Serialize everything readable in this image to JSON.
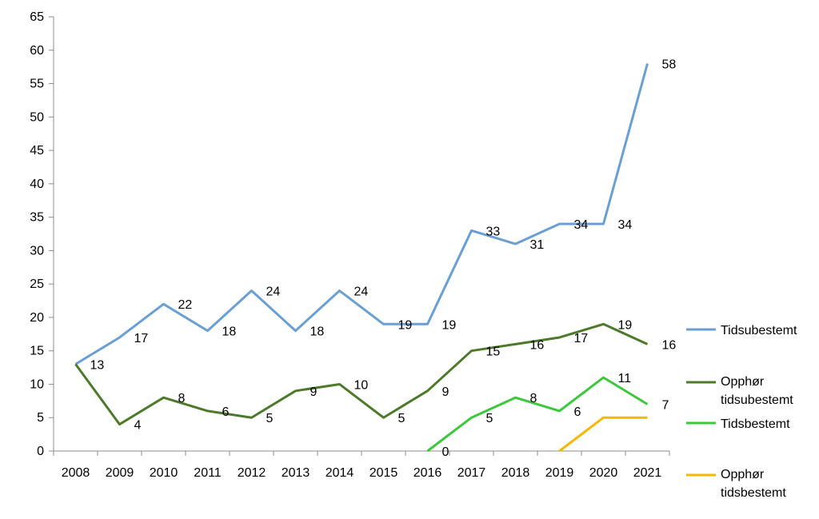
{
  "chart_data": {
    "type": "line",
    "title": "",
    "xlabel": "",
    "ylabel": "",
    "ylim": [
      0,
      65
    ],
    "y_ticks": [
      0,
      5,
      10,
      15,
      20,
      25,
      30,
      35,
      40,
      45,
      50,
      55,
      60,
      65
    ],
    "grid": false,
    "legend_position": "right",
    "categories": [
      "2008",
      "2009",
      "2010",
      "2011",
      "2012",
      "2013",
      "2014",
      "2015",
      "2016",
      "2017",
      "2018",
      "2019",
      "2020",
      "2021"
    ],
    "series": [
      {
        "name": "Tidsubestemt",
        "color": "#6a9fd4",
        "values": [
          13,
          17,
          22,
          18,
          24,
          18,
          24,
          19,
          19,
          33,
          31,
          34,
          34,
          58
        ],
        "labels": [
          "13",
          "17",
          "22",
          "18",
          "24",
          "18",
          "24",
          "19",
          "19",
          "33",
          "31",
          "34",
          "34",
          "58"
        ]
      },
      {
        "name": "Opphør tidsubestemt",
        "legend_lines": [
          "Opphør",
          "tidsubestemt"
        ],
        "color": "#4d7a2a",
        "values": [
          13,
          4,
          8,
          6,
          5,
          9,
          10,
          5,
          9,
          15,
          16,
          17,
          19,
          16
        ],
        "labels": [
          null,
          "4",
          "8",
          "6",
          "5",
          "9",
          "10",
          "5",
          "9",
          "15",
          "16",
          "17",
          "19",
          "16"
        ]
      },
      {
        "name": "Tidsbestemt",
        "color": "#3cc83c",
        "values": [
          null,
          null,
          null,
          null,
          null,
          null,
          null,
          null,
          0,
          5,
          8,
          6,
          11,
          7
        ],
        "labels": [
          null,
          null,
          null,
          null,
          null,
          null,
          null,
          null,
          "0",
          "5",
          "8",
          "6",
          "11",
          "7"
        ]
      },
      {
        "name": "Opphør tidsbestemt",
        "legend_lines": [
          "Opphør",
          "tidsbestemt"
        ],
        "color": "#f5b800",
        "values": [
          null,
          null,
          null,
          null,
          null,
          null,
          null,
          null,
          null,
          null,
          null,
          0,
          5,
          5
        ],
        "labels": [
          null,
          null,
          null,
          null,
          null,
          null,
          null,
          null,
          null,
          null,
          null,
          null,
          null,
          null
        ]
      }
    ]
  }
}
